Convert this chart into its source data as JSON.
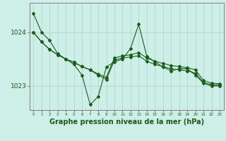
{
  "bg_color": "#ceeee8",
  "line_color": "#1a5c1a",
  "grid_color": "#aad4cc",
  "axis_color": "#808080",
  "xlabel": "Graphe pression niveau de la mer (hPa)",
  "xlabel_fontsize": 7.0,
  "ylabel_ticks": [
    1023,
    1024
  ],
  "xlim": [
    -0.5,
    23.5
  ],
  "ylim": [
    1022.55,
    1024.55
  ],
  "series": [
    [
      1024.35,
      1024.0,
      1023.85,
      1023.6,
      1023.5,
      1023.4,
      1023.2,
      1022.65,
      1022.8,
      1023.35,
      1023.45,
      1023.5,
      1023.7,
      1024.15,
      1023.55,
      1023.45,
      1023.35,
      1023.28,
      1023.32,
      1023.32,
      1023.2,
      1023.05,
      1023.0,
      1023.0
    ],
    [
      1024.0,
      1023.82,
      1023.68,
      1023.58,
      1023.5,
      1023.44,
      1023.36,
      1023.3,
      1023.22,
      1023.16,
      1023.52,
      1023.56,
      1023.58,
      1023.62,
      1023.52,
      1023.46,
      1023.42,
      1023.38,
      1023.36,
      1023.34,
      1023.3,
      1023.1,
      1023.05,
      1023.04
    ],
    [
      1024.0,
      1023.82,
      1023.68,
      1023.58,
      1023.5,
      1023.44,
      1023.36,
      1023.3,
      1023.2,
      1023.12,
      1023.48,
      1023.52,
      1023.54,
      1023.56,
      1023.46,
      1023.4,
      1023.36,
      1023.32,
      1023.3,
      1023.28,
      1023.24,
      1023.06,
      1023.02,
      1023.02
    ]
  ],
  "marker": "D",
  "marker_size": 2.0,
  "line_width": 0.8
}
